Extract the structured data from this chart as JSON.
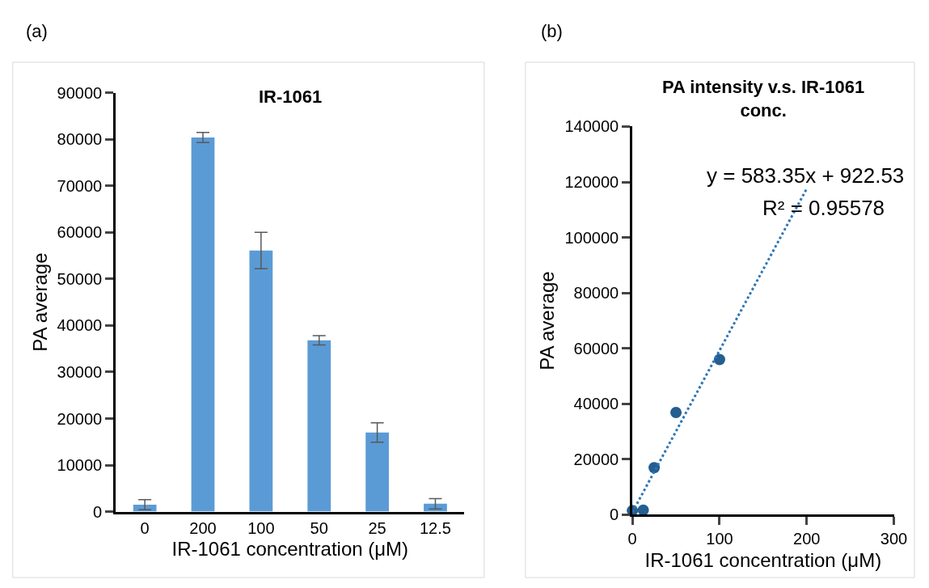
{
  "chart_data": [
    {
      "type": "bar",
      "title": "IR-1061",
      "xlabel": "IR-1061 concentration (μM)",
      "ylabel": "PA average",
      "annotations": [
        "(a)"
      ],
      "categories": [
        "0",
        "200",
        "100",
        "50",
        "25",
        "12.5"
      ],
      "series": [
        {
          "color": "#5b9bd5",
          "values": [
            1500,
            80400,
            56100,
            36800,
            17000,
            1700
          ],
          "errors": [
            1100,
            1100,
            3900,
            1000,
            2100,
            1100
          ]
        }
      ],
      "ylim": [
        0,
        90000
      ],
      "yticks": [
        0,
        10000,
        20000,
        30000,
        40000,
        50000,
        60000,
        70000,
        80000,
        90000
      ]
    },
    {
      "type": "scatter",
      "title": "PA intensity v.s. IR-1061 conc.",
      "xlabel": "IR-1061 concentration (μM)",
      "ylabel": "PA average",
      "annotations": [
        "(b)",
        "y = 583.35x + 922.53",
        "R² = 0.95578"
      ],
      "series": [
        {
          "type": "scatter",
          "color": "#255e91",
          "x": [
            0,
            12.5,
            25,
            50,
            100
          ],
          "values": [
            1500,
            1700,
            17000,
            36900,
            56000
          ],
          "marker": "circle"
        },
        {
          "type": "line",
          "color": "#2e75b6",
          "x": [
            0,
            200
          ],
          "values": [
            900,
            117600
          ],
          "line_style": "dotted",
          "marker": "none"
        }
      ],
      "xlim": [
        0,
        300
      ],
      "xticks": [
        0,
        100,
        200,
        300
      ],
      "ylim": [
        0,
        140000
      ],
      "yticks": [
        0,
        20000,
        40000,
        60000,
        80000,
        100000,
        120000,
        140000
      ]
    }
  ]
}
